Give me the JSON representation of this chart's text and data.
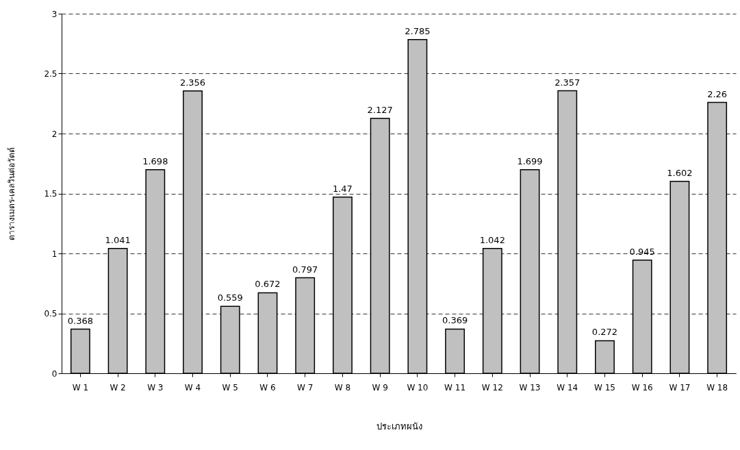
{
  "chart_data": {
    "type": "bar",
    "xlabel": "ประเภทผนัง",
    "ylabel": "ตารางเมตร-เคลวินต่อวัตต์",
    "categories": [
      "W 1",
      "W 2",
      "W 3",
      "W 4",
      "W 5",
      "W 6",
      "W 7",
      "W 8",
      "W 9",
      "W 10",
      "W 11",
      "W 12",
      "W 13",
      "W 14",
      "W 15",
      "W 16",
      "W 17",
      "W 18"
    ],
    "values": [
      0.368,
      1.041,
      1.698,
      2.356,
      0.559,
      0.672,
      0.797,
      1.47,
      2.127,
      2.785,
      0.369,
      1.042,
      1.699,
      2.357,
      0.272,
      0.945,
      1.602,
      2.26
    ],
    "color": "#c0c0c0",
    "ylim": [
      0,
      3
    ],
    "yticks": [
      0,
      0.5,
      1,
      1.5,
      2,
      2.5,
      3
    ],
    "grid": "y",
    "data_labels": true
  }
}
